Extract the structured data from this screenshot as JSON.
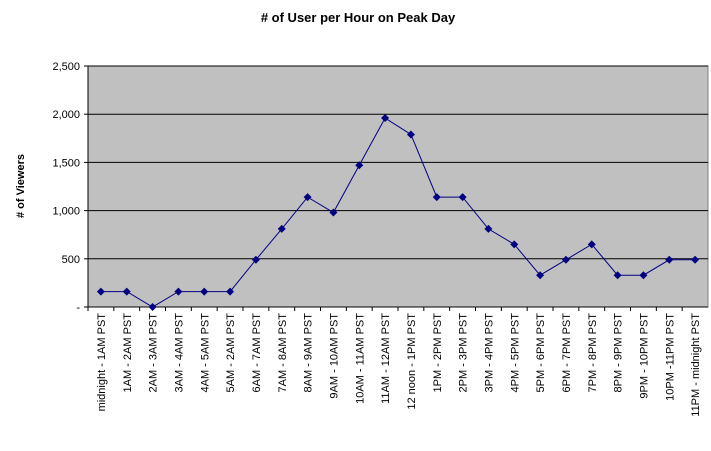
{
  "chart_data": {
    "type": "line",
    "title": "# of User per Hour on Peak Day",
    "y_label": "# of Viewers",
    "categories": [
      "midnight - 1AM PST",
      "1AM - 2AM PST",
      "2AM - 3AM PST",
      "3AM - 4AM PST",
      "4AM - 5AM PST",
      "5AM - 2AM PST",
      "6AM - 7AM PST",
      "7AM - 8AM PST",
      "8AM - 9AM PST",
      "9AM - 10AM PST",
      "10AM - 11AM PST",
      "11AM - 12AM PST",
      "12 noon - 1PM PST",
      "1PM - 2PM PST",
      "2PM - 3PM PST",
      "3PM - 4PM PST",
      "4PM - 5PM PST",
      "5PM - 6PM PST",
      "6PM - 7PM PST",
      "7PM - 8PM PST",
      "8PM - 9PM PST",
      "9PM - 10PM PST",
      "10PM -11PM PST",
      "11PM - midnight PST"
    ],
    "values": [
      160,
      160,
      0,
      160,
      160,
      160,
      490,
      810,
      1140,
      980,
      1470,
      1960,
      1790,
      1140,
      1140,
      810,
      650,
      330,
      490,
      650,
      330,
      330,
      490,
      490
    ],
    "color": "#000080",
    "ylim": [
      0,
      2500
    ],
    "yticks": [
      {
        "value": 0,
        "label": "-"
      },
      500,
      {
        "value": 1000,
        "label": "1,000"
      },
      {
        "value": 1500,
        "label": "1,500"
      },
      {
        "value": 2000,
        "label": "2,000"
      },
      {
        "value": 2500,
        "label": "2,500"
      }
    ],
    "grid": true
  }
}
